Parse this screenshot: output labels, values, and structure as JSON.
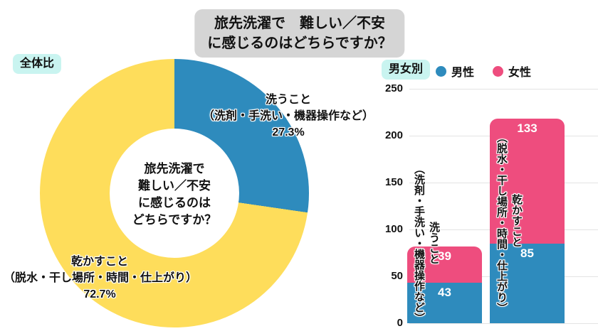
{
  "ui": {
    "title_line1": "旅先洗濯で　難しい／不安",
    "title_line2": "に感じるのはどちらですか？",
    "overall_badge": "全体比",
    "gender_badge": "男女別",
    "legend_male": "男性",
    "legend_female": "女性",
    "donut_center": {
      "l1": "旅先洗濯で",
      "l2": "難しい／不安",
      "l3": "に感じるのは",
      "l4": "どちらですか？"
    },
    "wash_label": {
      "name": "洗うこと",
      "detail": "（洗剤・手洗い・機器操作など）",
      "percent": "27.3%"
    },
    "dry_label": {
      "name": "乾かすこと",
      "detail": "（脱水・干し場所・時間・仕上がり）",
      "percent": "72.7%"
    },
    "bar_wash": {
      "name": "洗うこと",
      "detail": "（洗剤・手洗い・機器操作など）"
    },
    "bar_dry": {
      "name": "乾かすこと",
      "detail": "（脱水・干し場所・時間・仕上がり）"
    }
  },
  "colors": {
    "male_blue": "#2e8bbd",
    "female_pink": "#ee4d7e",
    "dry_yellow": "#fedd5b",
    "title_gray": "#d5d5d5",
    "badge_cyan": "#c9f4f0"
  },
  "chart_data": [
    {
      "type": "pie",
      "donut": true,
      "title": "全体比",
      "labels": [
        "洗うこと（洗剤・手洗い・機器操作など）",
        "乾かすこと（脱水・干し場所・時間・仕上がり）"
      ],
      "values": [
        27.3,
        72.7
      ],
      "unit": "%",
      "colors": [
        "#2e8bbd",
        "#fedd5b"
      ],
      "start_angle_deg": 0,
      "center_text": "旅先洗濯で難しい／不安に感じるのはどちらですか？"
    },
    {
      "type": "bar",
      "stacked": true,
      "title": "男女別",
      "categories": [
        "洗うこと（洗剤・手洗い・機器操作など）",
        "乾かすこと（脱水・干し場所・時間・仕上がり）"
      ],
      "series": [
        {
          "name": "男性",
          "values": [
            43,
            85
          ],
          "color": "#2e8bbd"
        },
        {
          "name": "女性",
          "values": [
            39,
            133
          ],
          "color": "#ee4d7e"
        }
      ],
      "ylim": [
        0,
        250
      ],
      "y_ticks": [
        0,
        50,
        100,
        150,
        200,
        250
      ],
      "grid": true,
      "legend_position": "top"
    }
  ]
}
